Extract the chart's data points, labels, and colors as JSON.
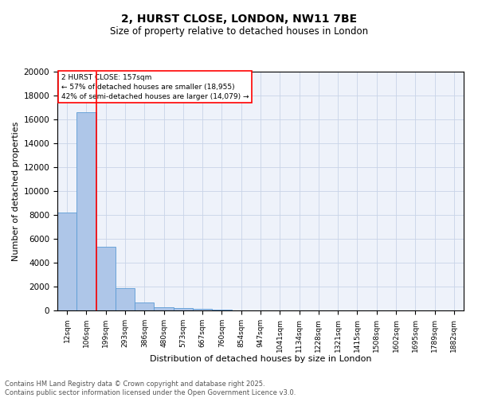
{
  "title_line1": "2, HURST CLOSE, LONDON, NW11 7BE",
  "title_line2": "Size of property relative to detached houses in London",
  "xlabel": "Distribution of detached houses by size in London",
  "ylabel": "Number of detached properties",
  "bin_labels": [
    "12sqm",
    "106sqm",
    "199sqm",
    "293sqm",
    "386sqm",
    "480sqm",
    "573sqm",
    "667sqm",
    "760sqm",
    "854sqm",
    "947sqm",
    "1041sqm",
    "1134sqm",
    "1228sqm",
    "1321sqm",
    "1415sqm",
    "1508sqm",
    "1602sqm",
    "1695sqm",
    "1789sqm",
    "1882sqm"
  ],
  "bar_heights": [
    8200,
    16600,
    5350,
    1850,
    700,
    300,
    210,
    150,
    100,
    0,
    0,
    0,
    0,
    0,
    0,
    0,
    0,
    0,
    0,
    0,
    0
  ],
  "bar_color": "#aec6e8",
  "bar_edge_color": "#5b9bd5",
  "vline_x": 1.5,
  "vline_color": "red",
  "annotation_box_text": "2 HURST CLOSE: 157sqm\n← 57% of detached houses are smaller (18,955)\n42% of semi-detached houses are larger (14,079) →",
  "ylim": [
    0,
    20000
  ],
  "yticks": [
    0,
    2000,
    4000,
    6000,
    8000,
    10000,
    12000,
    14000,
    16000,
    18000,
    20000
  ],
  "footer_line1": "Contains HM Land Registry data © Crown copyright and database right 2025.",
  "footer_line2": "Contains public sector information licensed under the Open Government Licence v3.0.",
  "bg_color": "#eef2fa",
  "grid_color": "#c8d4e8"
}
